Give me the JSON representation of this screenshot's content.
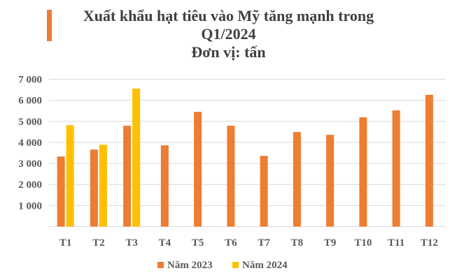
{
  "chart_data": {
    "type": "bar",
    "title_lines": [
      "Xuất khẩu hạt tiêu vào Mỹ tăng mạnh trong",
      "Q1/2024",
      "Đơn vị: tấn"
    ],
    "categories": [
      "T1",
      "T2",
      "T3",
      "T4",
      "T5",
      "T6",
      "T7",
      "T8",
      "T9",
      "T10",
      "T11",
      "T12"
    ],
    "series": [
      {
        "name": "Năm 2023",
        "color": "#ED7D31",
        "values": [
          3330,
          3660,
          4790,
          3860,
          5450,
          4790,
          3360,
          4490,
          4360,
          5190,
          5520,
          6260
        ]
      },
      {
        "name": "Năm 2024",
        "color": "#FFC000",
        "values": [
          4820,
          3890,
          6560,
          null,
          null,
          null,
          null,
          null,
          null,
          null,
          null,
          null
        ]
      }
    ],
    "ylim": [
      0,
      7000
    ],
    "yticks": [
      0,
      1000,
      2000,
      3000,
      4000,
      5000,
      6000,
      7000
    ],
    "ytick_labels": [
      "",
      "1 000",
      "2 000",
      "3 000",
      "4 000",
      "5 000",
      "6 000",
      "7 000"
    ],
    "grid": true,
    "legend_position": "bottom",
    "accent_color": "#ED7D31"
  }
}
